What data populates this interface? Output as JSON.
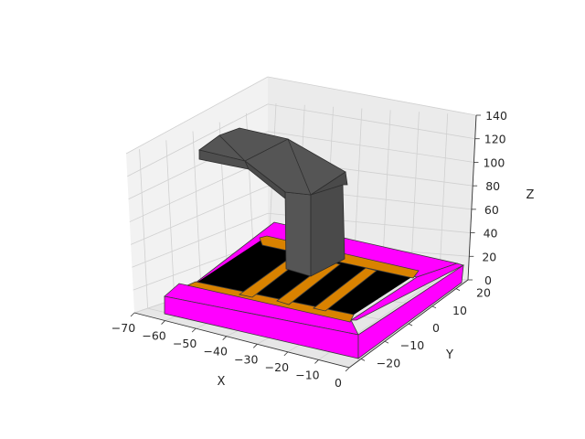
{
  "chart_data": {
    "type": "3d-surface",
    "title": "",
    "axes": {
      "x": {
        "label": "X",
        "range": [
          -70,
          0
        ],
        "ticks": [
          -70,
          -60,
          -50,
          -40,
          -30,
          -20,
          -10,
          0
        ]
      },
      "y": {
        "label": "Y",
        "range": [
          -25,
          25
        ],
        "ticks": [
          -20,
          -10,
          0,
          10,
          20
        ]
      },
      "z": {
        "label": "Z",
        "range": [
          0,
          140
        ],
        "ticks": [
          0,
          20,
          40,
          60,
          80,
          100,
          120,
          140
        ]
      }
    },
    "grid": true,
    "colors": {
      "frame": "#ff00ff",
      "rails": "#d98200",
      "floor": "#000000",
      "arm": "#555555",
      "pane": "#f2f2f2",
      "grid": "#d0d0d0",
      "edge": "#3a3a3a"
    },
    "objects": [
      {
        "name": "base-frame",
        "color": "#ff00ff",
        "x": [
          -70,
          0
        ],
        "y": [
          -25,
          25
        ],
        "z": [
          0,
          8
        ]
      },
      {
        "name": "rails",
        "color": "#d98200",
        "count": 4
      },
      {
        "name": "floor",
        "color": "#000000"
      },
      {
        "name": "column-arm",
        "color": "#555555",
        "z": [
          0,
          140
        ]
      }
    ]
  }
}
